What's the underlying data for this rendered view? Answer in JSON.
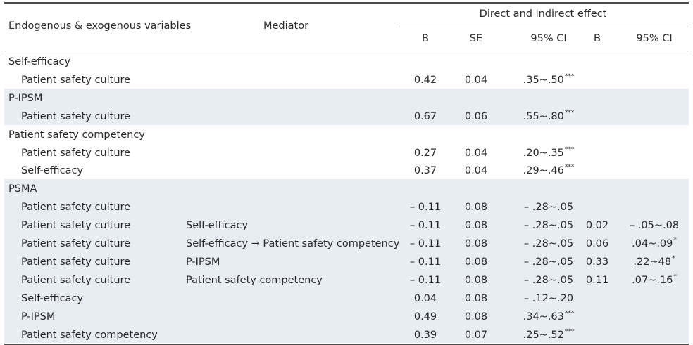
{
  "header": {
    "col_variables": "Endogenous & exogenous variables",
    "col_mediator": "Mediator",
    "col_group": "Direct and indirect effect",
    "sub_b": "B",
    "sub_se": "SE",
    "sub_ci": "95% CI",
    "sub_b2": "B",
    "sub_ci2": "95% CI"
  },
  "colors": {
    "band": "#e8ecf3",
    "rule": "#4a4a4a"
  },
  "rows": [
    {
      "kind": "group",
      "var": "Self-efficacy",
      "shaded": false
    },
    {
      "kind": "item",
      "var": "Patient safety culture",
      "med": "",
      "b": "0.42",
      "se": "0.04",
      "ci": ".35~.50",
      "ci_sig": "***",
      "b2": "",
      "ci2": "",
      "ci2_sig": "",
      "shaded": false
    },
    {
      "kind": "group",
      "var": "P-IPSM",
      "shaded": true
    },
    {
      "kind": "item",
      "var": "Patient safety culture",
      "med": "",
      "b": "0.67",
      "se": "0.06",
      "ci": ".55~.80",
      "ci_sig": "***",
      "b2": "",
      "ci2": "",
      "ci2_sig": "",
      "shaded": true
    },
    {
      "kind": "group",
      "var": "Patient safety competency",
      "shaded": false
    },
    {
      "kind": "item",
      "var": "Patient safety culture",
      "med": "",
      "b": "0.27",
      "se": "0.04",
      "ci": ".20~.35",
      "ci_sig": "***",
      "b2": "",
      "ci2": "",
      "ci2_sig": "",
      "shaded": false
    },
    {
      "kind": "item",
      "var": "Self-efficacy",
      "med": "",
      "b": "0.37",
      "se": "0.04",
      "ci": ".29~.46",
      "ci_sig": "***",
      "b2": "",
      "ci2": "",
      "ci2_sig": "",
      "shaded": false
    },
    {
      "kind": "group",
      "var": "PSMA",
      "shaded": true
    },
    {
      "kind": "item",
      "var": "Patient safety culture",
      "med": "",
      "b": "– 0.11",
      "se": "0.08",
      "ci": "– .28~.05",
      "ci_sig": "",
      "b2": "",
      "ci2": "",
      "ci2_sig": "",
      "shaded": true
    },
    {
      "kind": "item",
      "var": "Patient safety culture",
      "med": "Self-efficacy",
      "b": "– 0.11",
      "se": "0.08",
      "ci": "– .28~.05",
      "ci_sig": "",
      "b2": "0.02",
      "ci2": "– .05~.08",
      "ci2_sig": "",
      "shaded": true
    },
    {
      "kind": "item",
      "var": "Patient safety culture",
      "med": "Self-efficacy → Patient safety competency",
      "b": "– 0.11",
      "se": "0.08",
      "ci": "– .28~.05",
      "ci_sig": "",
      "b2": "0.06",
      "ci2": ".04~.09",
      "ci2_sig": "*",
      "shaded": true
    },
    {
      "kind": "item",
      "var": "Patient safety culture",
      "med": "P-IPSM",
      "b": "– 0.11",
      "se": "0.08",
      "ci": "– .28~.05",
      "ci_sig": "",
      "b2": "0.33",
      "ci2": ".22~48",
      "ci2_sig": "*",
      "shaded": true
    },
    {
      "kind": "item",
      "var": "Patient safety culture",
      "med": "Patient safety competency",
      "b": "– 0.11",
      "se": "0.08",
      "ci": "– .28~.05",
      "ci_sig": "",
      "b2": "0.11",
      "ci2": ".07~.16",
      "ci2_sig": "*",
      "shaded": true
    },
    {
      "kind": "item",
      "var": "Self-efficacy",
      "med": "",
      "b": "0.04",
      "se": "0.08",
      "ci": "– .12~.20",
      "ci_sig": "",
      "b2": "",
      "ci2": "",
      "ci2_sig": "",
      "shaded": true
    },
    {
      "kind": "item",
      "var": "P-IPSM",
      "med": "",
      "b": "0.49",
      "se": "0.08",
      "ci": ".34~.63",
      "ci_sig": "***",
      "b2": "",
      "ci2": "",
      "ci2_sig": "",
      "shaded": true
    },
    {
      "kind": "item",
      "var": "Patient safety competency",
      "med": "",
      "b": "0.39",
      "se": "0.07",
      "ci": ".25~.52",
      "ci_sig": "***",
      "b2": "",
      "ci2": "",
      "ci2_sig": "",
      "shaded": true
    }
  ]
}
